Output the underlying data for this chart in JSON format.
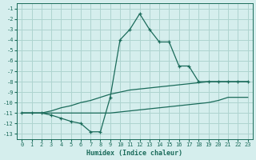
{
  "xlabel": "Humidex (Indice chaleur)",
  "bg_color": "#d5eeed",
  "grid_color": "#aed4d0",
  "line_color": "#1a6b5a",
  "x_values": [
    0,
    1,
    2,
    3,
    4,
    5,
    6,
    7,
    8,
    9,
    10,
    11,
    12,
    13,
    14,
    15,
    16,
    17,
    18,
    19,
    20,
    21,
    22,
    23
  ],
  "series_main": [
    -11,
    -11,
    -11,
    -11.2,
    -11.5,
    -11.8,
    -12.0,
    -12.8,
    -12.8,
    -9.5,
    -4.0,
    -3.0,
    -1.5,
    -3.0,
    -4.2,
    -4.2,
    -6.5,
    -6.5,
    -8.0,
    -8.0,
    -8.0,
    -8.0,
    -8.0,
    -8.0
  ],
  "series_diag": [
    -11,
    -11,
    -11,
    -10.8,
    -10.5,
    -10.3,
    -10.0,
    -9.8,
    -9.5,
    -9.2,
    -9.0,
    -8.8,
    -8.7,
    -8.6,
    -8.5,
    -8.4,
    -8.3,
    -8.2,
    -8.1,
    -8.0,
    -8.0,
    -8.0,
    -8.0,
    -8.0
  ],
  "series_flat": [
    -11,
    -11,
    -11,
    -11.0,
    -11.0,
    -11.0,
    -11.0,
    -11.0,
    -11.0,
    -11.0,
    -10.9,
    -10.8,
    -10.7,
    -10.6,
    -10.5,
    -10.4,
    -10.3,
    -10.2,
    -10.1,
    -10.0,
    -9.8,
    -9.5,
    -9.5,
    -9.5
  ],
  "ylim": [
    -13.5,
    -0.5
  ],
  "xlim": [
    -0.5,
    23.5
  ],
  "yticks": [
    -13,
    -12,
    -11,
    -10,
    -9,
    -8,
    -7,
    -6,
    -5,
    -4,
    -3,
    -2,
    -1
  ],
  "xticks": [
    0,
    1,
    2,
    3,
    4,
    5,
    6,
    7,
    8,
    9,
    10,
    11,
    12,
    13,
    14,
    15,
    16,
    17,
    18,
    19,
    20,
    21,
    22,
    23
  ]
}
